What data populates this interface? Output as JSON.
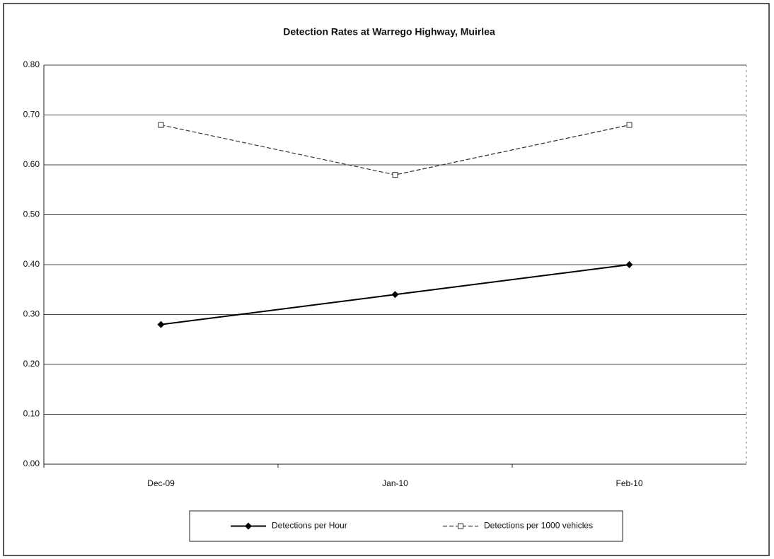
{
  "chart_data": {
    "type": "line",
    "title": "Detection Rates at Warrego Highway, Muirlea",
    "categories": [
      "Dec-09",
      "Jan-10",
      "Feb-10"
    ],
    "series": [
      {
        "name": "Detections per Hour",
        "color": "#000000",
        "values": [
          0.28,
          0.34,
          0.4
        ]
      },
      {
        "name": "Detections per 1000 vehicles",
        "color": "#333333",
        "values": [
          0.68,
          0.58,
          0.68
        ]
      }
    ],
    "ylim": [
      0,
      0.8
    ],
    "yticks": [
      {
        "value": 0,
        "label": "0.00"
      },
      {
        "value": 0.1,
        "label": "0.10"
      },
      {
        "value": 0.2,
        "label": "0.20"
      },
      {
        "value": 0.3,
        "label": "0.30"
      },
      {
        "value": 0.4,
        "label": "0.40"
      },
      {
        "value": 0.5,
        "label": "0.50"
      },
      {
        "value": 0.6,
        "label": "0.60"
      },
      {
        "value": 0.7,
        "label": "0.70"
      },
      {
        "value": 0.8,
        "label": "0.80"
      }
    ],
    "grid": true,
    "legend": "bottom"
  }
}
